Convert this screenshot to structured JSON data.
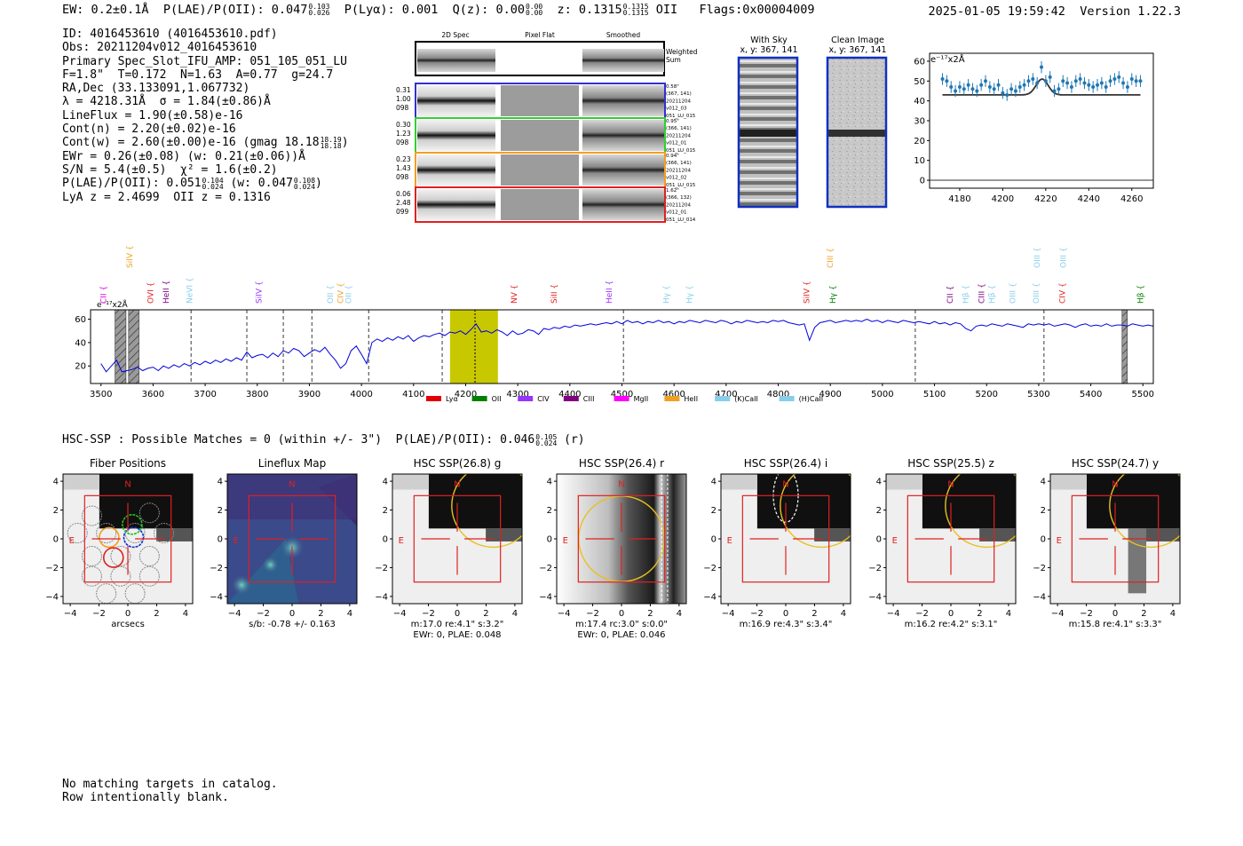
{
  "header": {
    "ew": "EW: 0.2±0.1Å",
    "plae_label": "P(LAE)/P(OII): 0.047",
    "plae_hi": "0.103",
    "plae_lo": "0.026",
    "plya": "P(Lyα): 0.001",
    "qz_label": "Q(z): 0.00",
    "qz_hi": "0.00",
    "qz_lo": "0.00",
    "z_label": "z: 0.1315",
    "z_hi": "0.1315",
    "z_lo": "0.1315",
    "z_line": "OII",
    "flags": "Flags:0x00004009",
    "datetime": "2025-01-05 19:59:42",
    "version": "Version 1.22.3"
  },
  "info": {
    "id": "ID: 4016453610 (4016453610.pdf)",
    "obs": "Obs: 20211204v012_4016453610",
    "primary": "Primary Spec_Slot_IFU_AMP: 051_105_051_LU",
    "params": "F=1.8\"  T=0.172  N=1.63  A=0.77  g=24.7",
    "radec": "RA,Dec (33.133091,1.067732)",
    "lambda": "λ = 4218.31Å  σ = 1.84(±0.86)Å",
    "lineflux": "LineFlux = 1.90(±0.58)e-16",
    "contn": "Cont(n) = 2.20(±0.02)e-16",
    "contw": "Cont(w) = 2.60(±0.00)e-16 (gmag 18.18",
    "gmag_hi": "18.19",
    "gmag_lo": "18.18",
    "ewr": "EWr = 0.26(±0.08) (w: 0.21(±0.06))Å",
    "sn": "S/N = 5.4(±0.5)  χ² = 1.6(±0.2)",
    "plae2": "P(LAE)/P(OII): 0.051",
    "plae2_hi": "0.104",
    "plae2_lo": "0.024",
    "plae2_w": "(w: 0.047",
    "plae2_w_hi": "0.108",
    "plae2_w_lo": "0.024",
    "lya_z": "LyA z = 2.4699  OII z = 0.1316"
  },
  "cutouts": {
    "col_titles": [
      "2D Spec",
      "Pixel Flat",
      "Smoothed"
    ],
    "weighted_sum": [
      "Weighted",
      "Sum"
    ],
    "rows": [
      {
        "left": [
          "0.31",
          "1.00",
          "098"
        ],
        "right": [
          "0.58\"",
          "(367, 141)",
          "20211204",
          "v012_03",
          "051_LU_015"
        ],
        "color": "#3030d0"
      },
      {
        "left": [
          "0.30",
          "1.23",
          "098"
        ],
        "right": [
          "0.95\"",
          "(366, 141)",
          "20211204",
          "v012_01",
          "051_LU_015"
        ],
        "color": "#30d030"
      },
      {
        "left": [
          "0.23",
          "1.43",
          "098"
        ],
        "right": [
          "0.94\"",
          "(366, 141)",
          "20211204",
          "v012_02",
          "051_LU_015"
        ],
        "color": "#f0a020"
      },
      {
        "left": [
          "0.06",
          "2.48",
          "099"
        ],
        "right": [
          "1.62\"",
          "(366, 132)",
          "20211204",
          "v012_01",
          "051_LU_014"
        ],
        "color": "#e02020"
      }
    ]
  },
  "sky": {
    "with_sky_title": "With Sky",
    "with_sky_coords": "x, y: 367, 141",
    "clean_title": "Clean Image",
    "clean_coords": "x, y: 367, 141"
  },
  "zoom_chart": {
    "type": "scatter",
    "ylabel_text": "e⁻¹⁷x2Å",
    "xlim": [
      4166,
      4270
    ],
    "ylim": [
      -4,
      64
    ],
    "xticks": [
      4180,
      4200,
      4220,
      4240,
      4260
    ],
    "yticks": [
      0,
      10,
      20,
      30,
      40,
      50,
      60
    ],
    "point_color": "#1f77b4",
    "fit_color": "#333333",
    "x": [
      4172,
      4174,
      4176,
      4178,
      4180,
      4182,
      4184,
      4186,
      4188,
      4190,
      4192,
      4194,
      4196,
      4198,
      4200,
      4202,
      4204,
      4206,
      4208,
      4210,
      4212,
      4214,
      4216,
      4218,
      4220,
      4222,
      4224,
      4226,
      4228,
      4230,
      4232,
      4234,
      4236,
      4238,
      4240,
      4242,
      4244,
      4246,
      4248,
      4250,
      4252,
      4254,
      4256,
      4258,
      4260,
      4262,
      4264
    ],
    "y": [
      51,
      50,
      47,
      45,
      47,
      46,
      48,
      46,
      45,
      48,
      50,
      47,
      46,
      48,
      44,
      43,
      46,
      45,
      47,
      48,
      50,
      51,
      49,
      57,
      50,
      52,
      45,
      46,
      50,
      49,
      47,
      50,
      51,
      49,
      48,
      47,
      48,
      49,
      47,
      50,
      51,
      52,
      49,
      47,
      51,
      50,
      50
    ],
    "err": [
      3,
      3,
      3,
      3,
      3,
      3,
      3,
      3,
      3,
      3,
      3,
      3,
      3,
      3,
      3,
      3,
      3,
      3,
      3,
      3,
      3,
      3,
      3,
      3,
      3,
      3,
      3,
      3,
      3,
      3,
      3,
      3,
      3,
      3,
      3,
      3,
      3,
      3,
      3,
      3,
      3,
      3,
      3,
      3,
      3,
      3,
      3
    ],
    "fit_continuum": 43,
    "fit_center": 4218.3,
    "fit_sigma": 2.8,
    "fit_amplitude": 8,
    "fit_xrange": [
      4172,
      4264
    ]
  },
  "spectrum_chart": {
    "type": "line",
    "ylabel_text": "e⁻¹⁷x2Å",
    "xlim": [
      3480,
      5520
    ],
    "ylim": [
      5,
      68
    ],
    "xticks": [
      3500,
      3600,
      3700,
      3800,
      3900,
      4000,
      4100,
      4200,
      4300,
      4400,
      4500,
      4600,
      4700,
      4800,
      4900,
      5000,
      5100,
      5200,
      5300,
      5400,
      5500
    ],
    "yticks": [
      20,
      40,
      60
    ],
    "line_color": "#0000dd",
    "highlight_band": [
      4170,
      4262
    ],
    "highlight_color": "#c8c800",
    "emission_center": 4218,
    "hatch_bands": [
      [
        3527,
        3548
      ],
      [
        3553,
        3573
      ],
      [
        5460,
        5470
      ]
    ],
    "dashed_lines": [
      3673,
      3780,
      3850,
      3905,
      4014,
      4155,
      4503,
      5063,
      5310
    ],
    "points": [
      [
        3500,
        22
      ],
      [
        3510,
        15
      ],
      [
        3520,
        20
      ],
      [
        3530,
        25
      ],
      [
        3540,
        15
      ],
      [
        3550,
        16
      ],
      [
        3560,
        17
      ],
      [
        3570,
        19
      ],
      [
        3580,
        16
      ],
      [
        3590,
        18
      ],
      [
        3600,
        19
      ],
      [
        3610,
        16
      ],
      [
        3620,
        20
      ],
      [
        3630,
        18
      ],
      [
        3640,
        21
      ],
      [
        3650,
        19
      ],
      [
        3660,
        22
      ],
      [
        3670,
        20
      ],
      [
        3680,
        23
      ],
      [
        3690,
        21
      ],
      [
        3700,
        24
      ],
      [
        3710,
        22
      ],
      [
        3720,
        25
      ],
      [
        3730,
        23
      ],
      [
        3740,
        26
      ],
      [
        3750,
        24
      ],
      [
        3760,
        27
      ],
      [
        3770,
        25
      ],
      [
        3780,
        32
      ],
      [
        3790,
        27
      ],
      [
        3800,
        29
      ],
      [
        3810,
        30
      ],
      [
        3820,
        27
      ],
      [
        3830,
        31
      ],
      [
        3840,
        28
      ],
      [
        3850,
        33
      ],
      [
        3860,
        31
      ],
      [
        3870,
        35
      ],
      [
        3880,
        33
      ],
      [
        3890,
        28
      ],
      [
        3900,
        31
      ],
      [
        3910,
        34
      ],
      [
        3920,
        32
      ],
      [
        3930,
        36
      ],
      [
        3940,
        30
      ],
      [
        3950,
        25
      ],
      [
        3960,
        18
      ],
      [
        3970,
        22
      ],
      [
        3980,
        33
      ],
      [
        3990,
        37
      ],
      [
        4000,
        30
      ],
      [
        4010,
        22
      ],
      [
        4020,
        40
      ],
      [
        4030,
        43
      ],
      [
        4040,
        41
      ],
      [
        4050,
        44
      ],
      [
        4060,
        42
      ],
      [
        4070,
        45
      ],
      [
        4080,
        43
      ],
      [
        4090,
        46
      ],
      [
        4100,
        41
      ],
      [
        4110,
        44
      ],
      [
        4120,
        46
      ],
      [
        4130,
        45
      ],
      [
        4140,
        47
      ],
      [
        4150,
        48
      ],
      [
        4160,
        46
      ],
      [
        4170,
        49
      ],
      [
        4180,
        48
      ],
      [
        4190,
        50
      ],
      [
        4200,
        47
      ],
      [
        4210,
        51
      ],
      [
        4220,
        56
      ],
      [
        4230,
        49
      ],
      [
        4240,
        50
      ],
      [
        4250,
        48
      ],
      [
        4260,
        51
      ],
      [
        4270,
        49
      ],
      [
        4280,
        46
      ],
      [
        4290,
        50
      ],
      [
        4300,
        47
      ],
      [
        4310,
        48
      ],
      [
        4320,
        51
      ],
      [
        4330,
        50
      ],
      [
        4340,
        47
      ],
      [
        4350,
        52
      ],
      [
        4360,
        51
      ],
      [
        4370,
        53
      ],
      [
        4380,
        52
      ],
      [
        4390,
        54
      ],
      [
        4400,
        53
      ],
      [
        4410,
        55
      ],
      [
        4420,
        54
      ],
      [
        4430,
        55
      ],
      [
        4440,
        56
      ],
      [
        4450,
        55
      ],
      [
        4460,
        56
      ],
      [
        4470,
        57
      ],
      [
        4480,
        56
      ],
      [
        4490,
        58
      ],
      [
        4500,
        56
      ],
      [
        4510,
        59
      ],
      [
        4520,
        57
      ],
      [
        4530,
        58
      ],
      [
        4540,
        56
      ],
      [
        4550,
        58
      ],
      [
        4560,
        57
      ],
      [
        4570,
        59
      ],
      [
        4580,
        57
      ],
      [
        4590,
        58
      ],
      [
        4600,
        56
      ],
      [
        4610,
        58
      ],
      [
        4620,
        57
      ],
      [
        4630,
        59
      ],
      [
        4640,
        58
      ],
      [
        4650,
        57
      ],
      [
        4660,
        59
      ],
      [
        4670,
        58
      ],
      [
        4680,
        57
      ],
      [
        4690,
        59
      ],
      [
        4700,
        58
      ],
      [
        4710,
        56
      ],
      [
        4720,
        58
      ],
      [
        4730,
        57
      ],
      [
        4740,
        59
      ],
      [
        4750,
        58
      ],
      [
        4760,
        57
      ],
      [
        4770,
        58
      ],
      [
        4780,
        57
      ],
      [
        4790,
        59
      ],
      [
        4800,
        58
      ],
      [
        4810,
        59
      ],
      [
        4820,
        57
      ],
      [
        4830,
        56
      ],
      [
        4840,
        55
      ],
      [
        4850,
        56
      ],
      [
        4860,
        42
      ],
      [
        4870,
        53
      ],
      [
        4880,
        57
      ],
      [
        4890,
        58
      ],
      [
        4900,
        59
      ],
      [
        4910,
        57
      ],
      [
        4920,
        58
      ],
      [
        4930,
        59
      ],
      [
        4940,
        58
      ],
      [
        4950,
        59
      ],
      [
        4960,
        58
      ],
      [
        4970,
        60
      ],
      [
        4980,
        58
      ],
      [
        4990,
        59
      ],
      [
        5000,
        57
      ],
      [
        5010,
        59
      ],
      [
        5020,
        58
      ],
      [
        5030,
        57
      ],
      [
        5040,
        59
      ],
      [
        5050,
        58
      ],
      [
        5060,
        57
      ],
      [
        5070,
        58
      ],
      [
        5080,
        57
      ],
      [
        5090,
        56
      ],
      [
        5100,
        58
      ],
      [
        5110,
        56
      ],
      [
        5120,
        57
      ],
      [
        5130,
        55
      ],
      [
        5140,
        57
      ],
      [
        5150,
        56
      ],
      [
        5160,
        52
      ],
      [
        5170,
        50
      ],
      [
        5180,
        54
      ],
      [
        5190,
        55
      ],
      [
        5200,
        54
      ],
      [
        5210,
        56
      ],
      [
        5220,
        55
      ],
      [
        5230,
        54
      ],
      [
        5240,
        56
      ],
      [
        5250,
        55
      ],
      [
        5260,
        54
      ],
      [
        5270,
        53
      ],
      [
        5280,
        56
      ],
      [
        5290,
        55
      ],
      [
        5300,
        56
      ],
      [
        5310,
        55
      ],
      [
        5320,
        56
      ],
      [
        5330,
        54
      ],
      [
        5340,
        55
      ],
      [
        5350,
        56
      ],
      [
        5360,
        55
      ],
      [
        5370,
        53
      ],
      [
        5380,
        55
      ],
      [
        5390,
        56
      ],
      [
        5400,
        54
      ],
      [
        5410,
        55
      ],
      [
        5420,
        54
      ],
      [
        5430,
        56
      ],
      [
        5440,
        54
      ],
      [
        5450,
        55
      ],
      [
        5460,
        55
      ],
      [
        5470,
        54
      ],
      [
        5480,
        56
      ],
      [
        5490,
        55
      ],
      [
        5500,
        54
      ],
      [
        5510,
        55
      ],
      [
        5520,
        54
      ]
    ],
    "line_labels": [
      {
        "x": 3510,
        "text": "CII",
        "color": "#dd00dd",
        "row": 0
      },
      {
        "x": 3560,
        "text": "SiIV",
        "color": "#f0a020",
        "row": 1
      },
      {
        "x": 3600,
        "text": "OVI",
        "color": "#e02020",
        "row": 0
      },
      {
        "x": 3630,
        "text": "HeII",
        "color": "#800080",
        "row": 0
      },
      {
        "x": 3675,
        "text": "NeVI",
        "color": "#87ceeb",
        "row": 0
      },
      {
        "x": 3808,
        "text": "SiIV",
        "color": "#9933ff",
        "row": 0
      },
      {
        "x": 3945,
        "text": "OII",
        "color": "#87ceeb",
        "row": 0
      },
      {
        "x": 3965,
        "text": "CIV",
        "color": "#f0a020",
        "row": 0
      },
      {
        "x": 3980,
        "text": "OII",
        "color": "#87ceeb",
        "row": 0
      },
      {
        "x": 4298,
        "text": "NV",
        "color": "#e02020",
        "row": 0
      },
      {
        "x": 4375,
        "text": "SiII",
        "color": "#e02020",
        "row": 0
      },
      {
        "x": 4480,
        "text": "HeII",
        "color": "#9933ff",
        "row": 0
      },
      {
        "x": 4590,
        "text": "Hγ",
        "color": "#87ceeb",
        "row": 0
      },
      {
        "x": 4635,
        "text": "Hγ",
        "color": "#87ceeb",
        "row": 0
      },
      {
        "x": 4860,
        "text": "SiIV",
        "color": "#e02020",
        "row": 0
      },
      {
        "x": 4905,
        "text": "CIII",
        "color": "#f0a020",
        "row": 1
      },
      {
        "x": 4910,
        "text": "Hγ",
        "color": "#008000",
        "row": 0
      },
      {
        "x": 5135,
        "text": "CII",
        "color": "#800080",
        "row": 0
      },
      {
        "x": 5165,
        "text": "Hβ",
        "color": "#87ceeb",
        "row": 0
      },
      {
        "x": 5195,
        "text": "CIII",
        "color": "#800080",
        "row": 0
      },
      {
        "x": 5215,
        "text": "Hβ",
        "color": "#87ceeb",
        "row": 0
      },
      {
        "x": 5255,
        "text": "OIII",
        "color": "#87ceeb",
        "row": 0
      },
      {
        "x": 5300,
        "text": "OIII",
        "color": "#87ceeb",
        "row": 0
      },
      {
        "x": 5302,
        "text": "OIII",
        "color": "#87ceeb",
        "row": 1
      },
      {
        "x": 5350,
        "text": "CIV",
        "color": "#e02020",
        "row": 0
      },
      {
        "x": 5352,
        "text": "OIII",
        "color": "#87ceeb",
        "row": 1
      },
      {
        "x": 5500,
        "text": "Hβ",
        "color": "#008000",
        "row": 0
      }
    ],
    "legend": [
      {
        "name": "Lyα",
        "color": "#e00000"
      },
      {
        "name": "OII",
        "color": "#008000"
      },
      {
        "name": "CIV",
        "color": "#9933ff"
      },
      {
        "name": "CIII",
        "color": "#800080"
      },
      {
        "name": "MgII",
        "color": "#ff00ff"
      },
      {
        "name": "HeII",
        "color": "#f0a020"
      },
      {
        "name": "(K)CaII",
        "color": "#87ceeb"
      },
      {
        "name": "(H)CaII",
        "color": "#87ceeb"
      }
    ]
  },
  "hsc_line": {
    "text": "HSC-SSP : Possible Matches = 0 (within +/- 3\")  P(LAE)/P(OII): 0.046",
    "hi": "0.105",
    "lo": "0.024",
    "band": "(r)"
  },
  "image_panels": [
    {
      "title": "Fiber Positions",
      "xlabel": "arcsecs",
      "sub2": "",
      "kind": "fiber"
    },
    {
      "title": "Lineflux Map",
      "xlabel": "s/b: -0.78 +/- 0.163",
      "sub2": "",
      "kind": "lineflux"
    },
    {
      "title": "HSC SSP(26.8) g",
      "xlabel": "m:17.0  re:4.1\"  s:3.2\"",
      "sub2": "EWr: 0, PLAE: 0.048",
      "kind": "hsc"
    },
    {
      "title": "HSC SSP(26.4) r",
      "xlabel": "m:17.4 rc:3.0\"  s:0.0\"",
      "sub2": "EWr: 0, PLAE: 0.046",
      "kind": "hsc_r"
    },
    {
      "title": "HSC SSP(26.4) i",
      "xlabel": "m:16.9  re:4.3\"  s:3.4\"",
      "sub2": "",
      "kind": "hsc_i"
    },
    {
      "title": "HSC SSP(25.5) z",
      "xlabel": "m:16.2  re:4.2\"  s:3.1\"",
      "sub2": "",
      "kind": "hsc"
    },
    {
      "title": "HSC SSP(24.7) y",
      "xlabel": "m:15.8  re:4.1\"  s:3.3\"",
      "sub2": "",
      "kind": "hsc_y"
    }
  ],
  "panel_axes": {
    "ticks": [
      -4,
      -2,
      0,
      2,
      4
    ],
    "tick_labels": [
      "−4",
      "−2",
      "0",
      "2",
      "4"
    ],
    "north": "N",
    "east": "E"
  },
  "footer": {
    "line1": "No matching targets in catalog.",
    "line2": "Row intentionally blank."
  }
}
